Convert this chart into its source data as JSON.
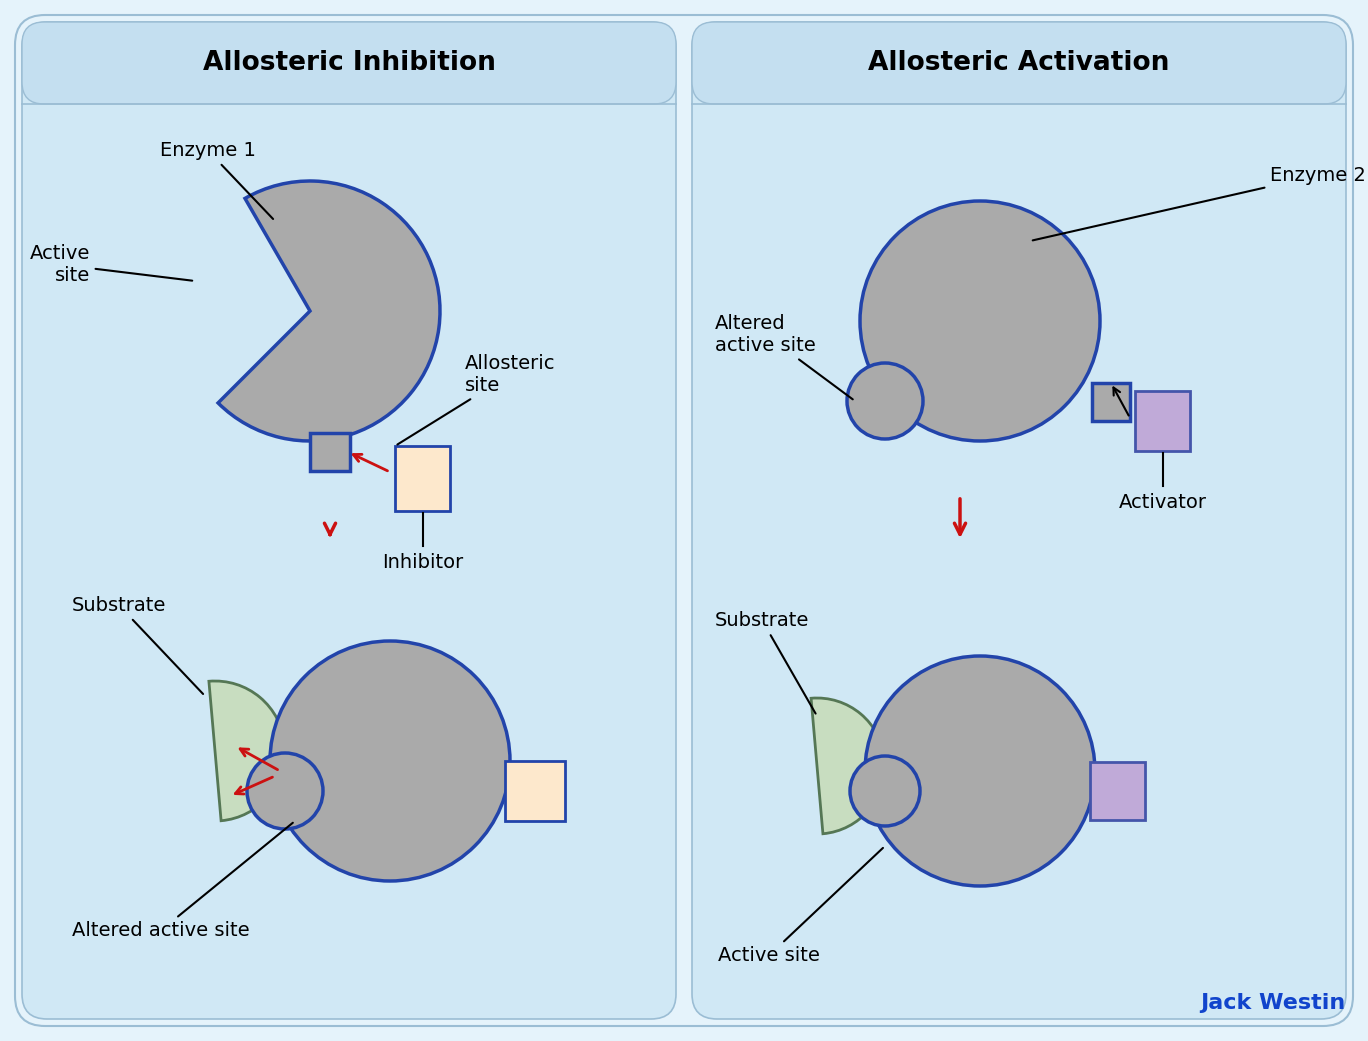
{
  "outer_bg": "#e5f3fb",
  "panel_bg": "#d0e8f5",
  "header_bg": "#c4dff0",
  "panel_border": "#9bbdd4",
  "title_left": "Allosteric Inhibition",
  "title_right": "Allosteric Activation",
  "enzyme_fill": "#aaaaaa",
  "enzyme_stroke": "#2244aa",
  "enzyme_lw": 2.5,
  "inhibitor_fill": "#fde8cc",
  "inhibitor_stroke": "#2244aa",
  "activator_fill": "#c0aad8",
  "activator_stroke": "#4455aa",
  "substrate_fill": "#c8ddc0",
  "substrate_stroke": "#557755",
  "red_arrow": "#cc1111",
  "black_line": "#111111",
  "label_fs": 14,
  "title_fs": 19,
  "brand": "Jack Westin",
  "brand_color": "#1144cc"
}
